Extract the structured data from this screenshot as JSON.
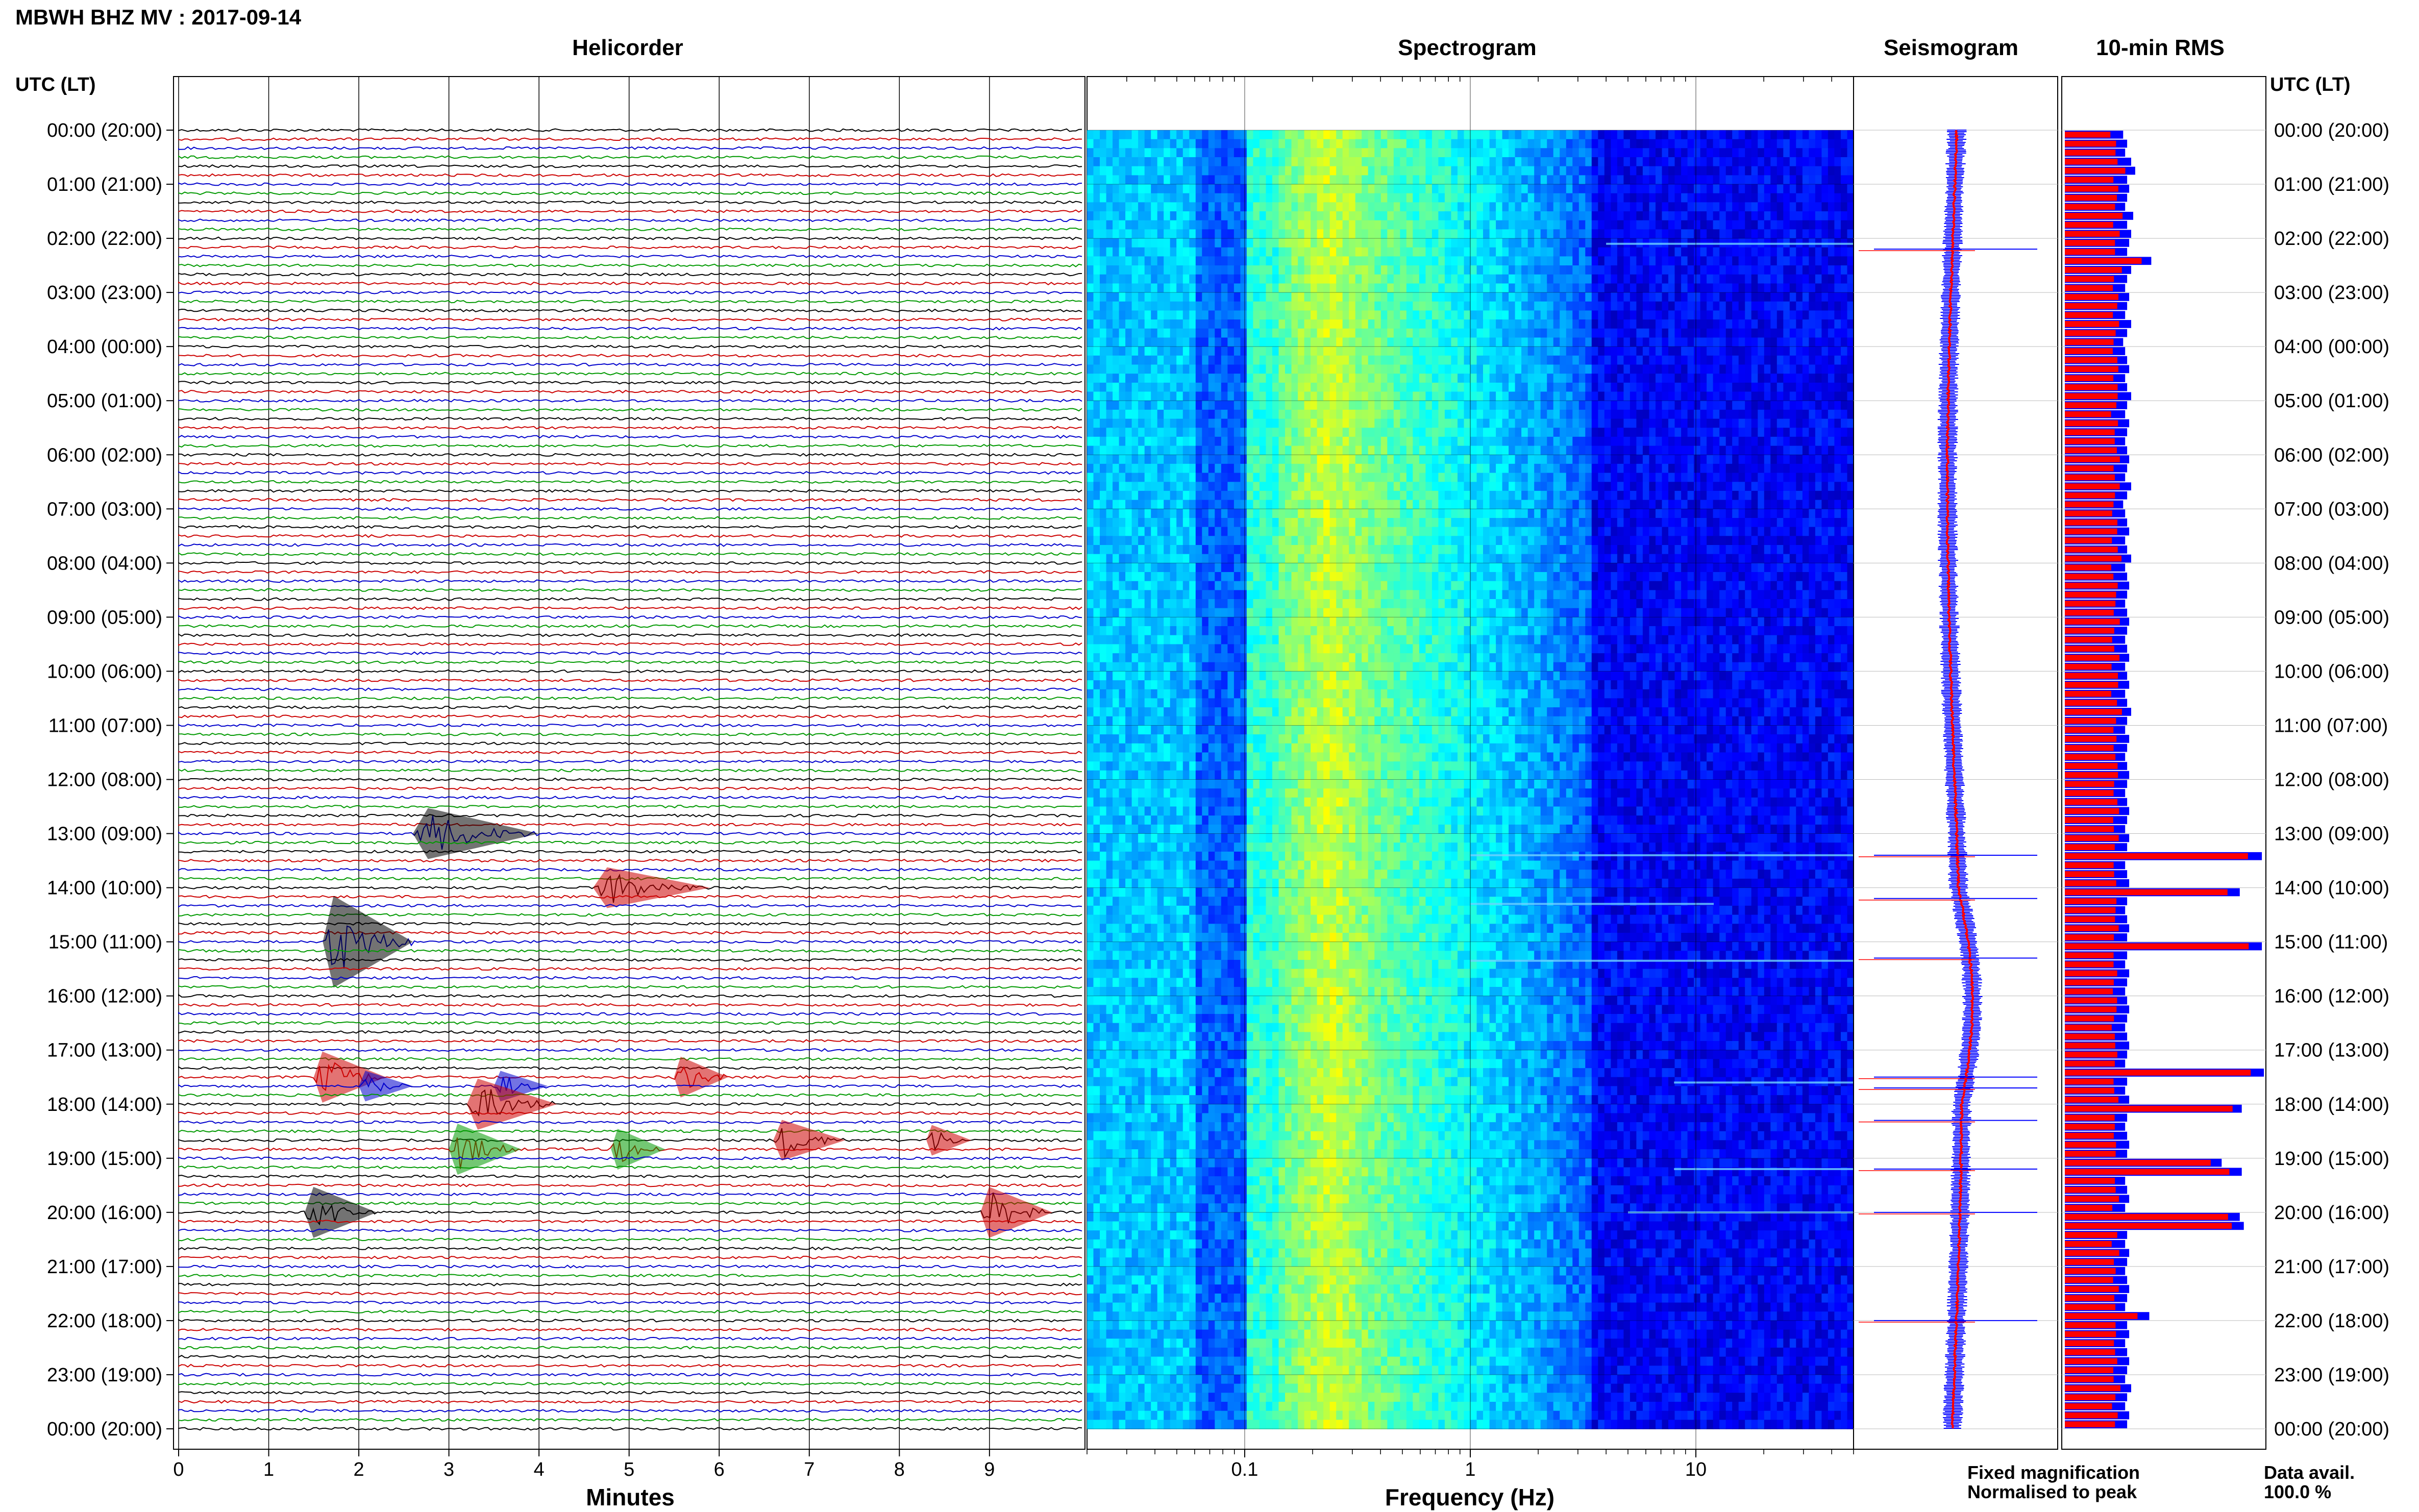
{
  "header": {
    "station_title": "MBWH BHZ MV : 2017-09-14",
    "utc_lt_label_left": "UTC (LT)",
    "utc_lt_label_right": "UTC (LT)"
  },
  "panels": {
    "helicorder": "Helicorder",
    "spectrogram": "Spectrogram",
    "seismogram": "Seismogram",
    "rms": "10-min RMS"
  },
  "axes": {
    "helicorder_xlabel": "Minutes",
    "spectrogram_xlabel": "Frequency (Hz)"
  },
  "legend": {
    "fixed": "Fixed magnification",
    "normalised": "Normalised to peak",
    "fixed_color": "#0000ff",
    "normalised_color": "#ff0000"
  },
  "data_avail": {
    "label": "Data avail.",
    "value": "100.0 %"
  },
  "trace_colors": [
    "#000000",
    "#cc0000",
    "#0000cc",
    "#009900"
  ],
  "chart_data": [
    {
      "type": "line",
      "panel": "helicorder",
      "xlabel": "Minutes",
      "ylabel": "",
      "x_ticks": [
        "0",
        "1",
        "2",
        "3",
        "4",
        "5",
        "6",
        "7",
        "8",
        "9"
      ],
      "xlim": [
        0,
        10
      ],
      "time_labels": [
        "00:00 (20:00)",
        "01:00 (21:00)",
        "02:00 (22:00)",
        "03:00 (23:00)",
        "04:00 (00:00)",
        "05:00 (01:00)",
        "06:00 (02:00)",
        "07:00 (03:00)",
        "08:00 (04:00)",
        "09:00 (05:00)",
        "10:00 (06:00)",
        "11:00 (07:00)",
        "12:00 (08:00)",
        "13:00 (09:00)",
        "14:00 (10:00)",
        "15:00 (11:00)",
        "16:00 (12:00)",
        "17:00 (13:00)",
        "18:00 (14:00)",
        "19:00 (15:00)",
        "20:00 (16:00)",
        "21:00 (17:00)",
        "22:00 (18:00)",
        "23:00 (19:00)",
        "00:00 (20:00)"
      ],
      "rows_per_hour": 6,
      "events": [
        {
          "row": 78,
          "minute": 2.6,
          "duration": 1.4,
          "amp": 5,
          "color": "#000000"
        },
        {
          "row": 84,
          "minute": 4.6,
          "duration": 1.3,
          "amp": 4,
          "color": "#cc0000"
        },
        {
          "row": 90,
          "minute": 1.6,
          "duration": 1.0,
          "amp": 9,
          "color": "#000000"
        },
        {
          "row": 105,
          "minute": 1.5,
          "duration": 0.8,
          "amp": 5,
          "color": "#cc0000"
        },
        {
          "row": 105,
          "minute": 5.5,
          "duration": 0.6,
          "amp": 4,
          "color": "#cc0000"
        },
        {
          "row": 106,
          "minute": 3.5,
          "duration": 0.6,
          "amp": 3,
          "color": "#0000cc"
        },
        {
          "row": 106,
          "minute": 2.0,
          "duration": 0.6,
          "amp": 3,
          "color": "#0000cc"
        },
        {
          "row": 108,
          "minute": 3.2,
          "duration": 1.0,
          "amp": 5,
          "color": "#cc0000"
        },
        {
          "row": 112,
          "minute": 6.6,
          "duration": 0.8,
          "amp": 4,
          "color": "#cc0000"
        },
        {
          "row": 112,
          "minute": 8.3,
          "duration": 0.5,
          "amp": 3,
          "color": "#cc0000"
        },
        {
          "row": 113,
          "minute": 3.0,
          "duration": 0.8,
          "amp": 5,
          "color": "#009900"
        },
        {
          "row": 113,
          "minute": 4.8,
          "duration": 0.6,
          "amp": 4,
          "color": "#009900"
        },
        {
          "row": 120,
          "minute": 1.4,
          "duration": 0.8,
          "amp": 5,
          "color": "#000000"
        },
        {
          "row": 120,
          "minute": 8.9,
          "duration": 0.8,
          "amp": 5,
          "color": "#cc0000"
        }
      ]
    },
    {
      "type": "heatmap",
      "panel": "spectrogram",
      "xlabel": "Frequency (Hz)",
      "x_scale": "log",
      "xlim": [
        0.02,
        50
      ],
      "x_ticks": [
        "0.1",
        "1",
        "10"
      ],
      "x_tick_values": [
        0.1,
        1,
        10
      ],
      "colormap": "jet",
      "rows": 144,
      "dominant_band_hz": [
        0.15,
        0.35
      ],
      "high_freq_cutoff_hz": 3.5,
      "narrowband_lines": [
        {
          "hour": 2.1,
          "fmin": 4.0,
          "fmax": 50
        },
        {
          "hour": 13.4,
          "fmin": 1.0,
          "fmax": 50
        },
        {
          "hour": 14.3,
          "fmin": 1.0,
          "fmax": 12
        },
        {
          "hour": 15.35,
          "fmin": 1.0,
          "fmax": 50
        },
        {
          "hour": 17.6,
          "fmin": 8.0,
          "fmax": 50
        },
        {
          "hour": 19.2,
          "fmin": 8.0,
          "fmax": 50
        },
        {
          "hour": 20.0,
          "fmin": 5.0,
          "fmax": 50
        }
      ]
    },
    {
      "type": "line",
      "panel": "seismogram",
      "series": [
        {
          "name": "Fixed magnification",
          "color": "#0000ff"
        },
        {
          "name": "Normalised to peak",
          "color": "#ff0000"
        }
      ],
      "spikes_hours": [
        2.2,
        13.4,
        14.2,
        15.3,
        17.5,
        17.7,
        18.3,
        19.2,
        20.0,
        22.0
      ]
    },
    {
      "type": "bar",
      "panel": "rms",
      "orientation": "horizontal",
      "bars_per_hour": 6,
      "series": [
        {
          "name": "Fixed magnification",
          "color": "#0000ff"
        },
        {
          "name": "Normalised to peak",
          "color": "#ff0000"
        }
      ],
      "rms_values": [
        0.29,
        0.31,
        0.3,
        0.33,
        0.35,
        0.31,
        0.32,
        0.31,
        0.3,
        0.34,
        0.31,
        0.33,
        0.32,
        0.31,
        0.43,
        0.33,
        0.31,
        0.3,
        0.32,
        0.31,
        0.3,
        0.33,
        0.31,
        0.29,
        0.3,
        0.31,
        0.32,
        0.3,
        0.31,
        0.33,
        0.31,
        0.3,
        0.32,
        0.31,
        0.3,
        0.31,
        0.32,
        0.31,
        0.3,
        0.33,
        0.31,
        0.29,
        0.3,
        0.31,
        0.32,
        0.3,
        0.31,
        0.33,
        0.3,
        0.31,
        0.32,
        0.31,
        0.3,
        0.31,
        0.32,
        0.31,
        0.3,
        0.31,
        0.32,
        0.3,
        0.31,
        0.32,
        0.3,
        0.31,
        0.33,
        0.31,
        0.3,
        0.32,
        0.31,
        0.3,
        0.31,
        0.32,
        0.31,
        0.3,
        0.31,
        0.32,
        0.31,
        0.3,
        0.32,
        0.31,
        0.98,
        0.3,
        0.31,
        0.32,
        0.87,
        0.31,
        0.3,
        0.31,
        0.32,
        0.31,
        0.98,
        0.31,
        0.3,
        0.32,
        0.31,
        0.3,
        0.31,
        0.32,
        0.31,
        0.3,
        0.31,
        0.32,
        0.31,
        0.3,
        0.99,
        0.31,
        0.3,
        0.32,
        0.88,
        0.31,
        0.3,
        0.31,
        0.32,
        0.31,
        0.78,
        0.88,
        0.3,
        0.31,
        0.32,
        0.3,
        0.87,
        0.89,
        0.31,
        0.3,
        0.32,
        0.31,
        0.3,
        0.31,
        0.32,
        0.31,
        0.3,
        0.42,
        0.31,
        0.32,
        0.3,
        0.31,
        0.32,
        0.31,
        0.3,
        0.33,
        0.31,
        0.3,
        0.32,
        0.31
      ]
    }
  ]
}
